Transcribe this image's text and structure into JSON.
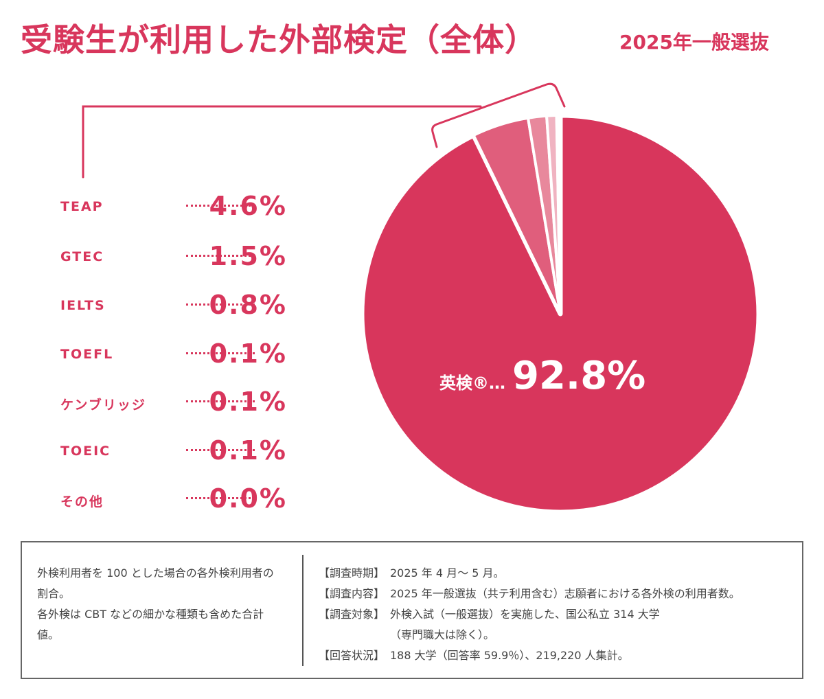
{
  "title": "受験生が利用した外部検定（全体）",
  "subtitle": "2025年一般選抜",
  "chart_data": {
    "type": "pie",
    "title": "受験生が利用した外部検定（全体）",
    "subtitle": "2025年一般選抜",
    "unit": "%",
    "slices": [
      {
        "label": "英検®",
        "value": 92.8,
        "display": "92.8%",
        "color": "#d8365c"
      },
      {
        "label": "TEAP",
        "value": 4.6,
        "display": "4.6%",
        "color": "#e05e7c"
      },
      {
        "label": "GTEC",
        "value": 1.5,
        "display": "1.5%",
        "color": "#e8889c"
      },
      {
        "label": "IELTS",
        "value": 0.8,
        "display": "0.8%",
        "color": "#f0b3c1"
      },
      {
        "label": "TOEFL",
        "value": 0.1,
        "display": "0.1%",
        "color": "#f6cdd6"
      },
      {
        "label": "ケンブリッジ",
        "value": 0.1,
        "display": "0.1%",
        "color": "#f6cdd6"
      },
      {
        "label": "TOEIC",
        "value": 0.1,
        "display": "0.1%",
        "color": "#f6cdd6"
      },
      {
        "label": "その他",
        "value": 0.0,
        "display": "0.0%",
        "color": "#f6cdd6"
      }
    ],
    "main_label_suffix": "…"
  },
  "notes": {
    "left": [
      "外検利用者を 100 とした場合の各外検利用者の割合。",
      "各外検は CBT などの細かな種類も含めた合計値。"
    ],
    "right": [
      {
        "key": "【調査時期】",
        "text": "2025 年 4 月～ 5 月。"
      },
      {
        "key": "【調査内容】",
        "text": "2025 年一般選抜（共テ利用含む）志願者における各外検の利用者数。"
      },
      {
        "key": "【調査対象】",
        "text": "外検入試（一般選抜）を実施した、国公私立 314 大学"
      },
      {
        "key": "",
        "text": "（専門職大は除く）。"
      },
      {
        "key": "【回答状況】",
        "text": "188 大学（回答率 59.9％）、219,220 人集計。"
      }
    ]
  }
}
